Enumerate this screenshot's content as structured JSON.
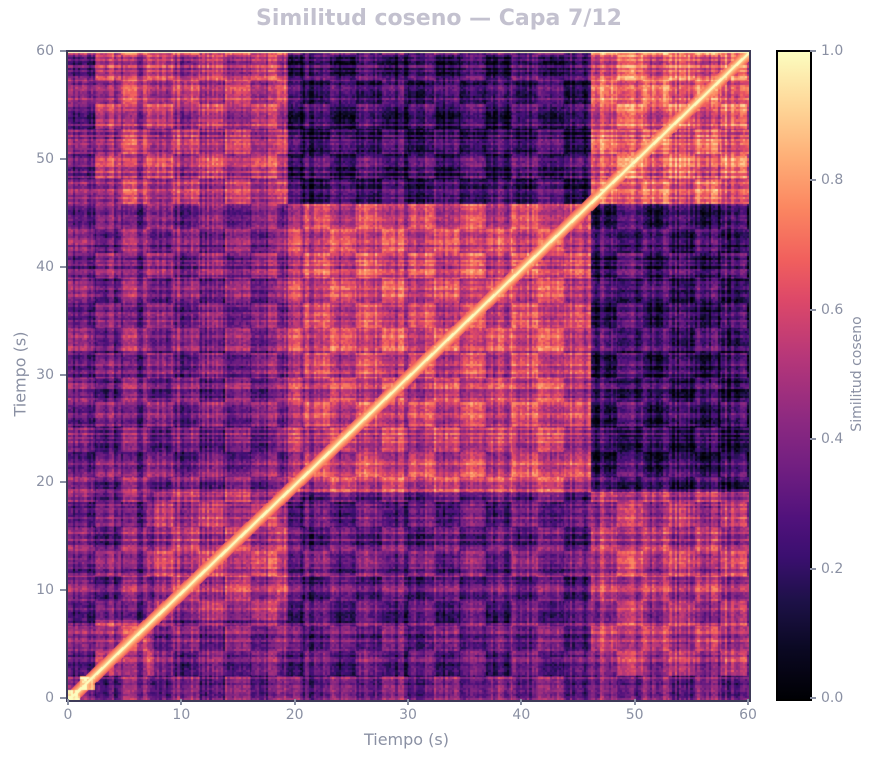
{
  "chart_data": {
    "type": "heatmap",
    "title": "Similitud coseno — Capa 7/12",
    "xlabel": "Tiempo (s)",
    "ylabel": "Tiempo (s)",
    "xlim": [
      0,
      60
    ],
    "ylim": [
      0,
      60
    ],
    "x_ticks": [
      "0",
      "10",
      "20",
      "30",
      "40",
      "50",
      "60"
    ],
    "y_ticks": [
      "0",
      "10",
      "20",
      "30",
      "40",
      "50",
      "60"
    ],
    "colormap": "magma",
    "colorbar": {
      "label": "Similitud coseno",
      "range": [
        0.0,
        1.0
      ],
      "ticks": [
        "0.0",
        "0.2",
        "0.4",
        "0.6",
        "0.8",
        "1.0"
      ]
    },
    "diagonal_value": 1.0,
    "segment_boundaries_s": [
      0,
      1.0,
      2.3,
      7.5,
      19.3,
      46.0,
      60.0
    ],
    "segments": [
      {
        "start": 0.0,
        "end": 1.0,
        "self_similarity": 0.85
      },
      {
        "start": 1.0,
        "end": 2.3,
        "self_similarity": 0.8
      },
      {
        "start": 2.3,
        "end": 7.5,
        "self_similarity": 0.45
      },
      {
        "start": 7.5,
        "end": 19.3,
        "self_similarity": 0.45
      },
      {
        "start": 19.3,
        "end": 46.0,
        "self_similarity": 0.5
      },
      {
        "start": 46.0,
        "end": 60.0,
        "self_similarity": 0.6
      }
    ],
    "cross_block_similarity": [
      {
        "rows": [
          46.0,
          60.0
        ],
        "cols": [
          2.3,
          19.3
        ],
        "mean": 0.45
      },
      {
        "rows": [
          46.0,
          60.0
        ],
        "cols": [
          19.3,
          46.0
        ],
        "mean": 0.15
      },
      {
        "rows": [
          19.3,
          46.0
        ],
        "cols": [
          46.0,
          60.0
        ],
        "mean": 0.15
      },
      {
        "rows": [
          2.3,
          19.3
        ],
        "cols": [
          46.0,
          60.0
        ],
        "mean": 0.45
      },
      {
        "rows": [
          2.3,
          19.3
        ],
        "cols": [
          19.3,
          46.0
        ],
        "mean": 0.25
      },
      {
        "rows": [
          19.3,
          46.0
        ],
        "cols": [
          2.3,
          19.3
        ],
        "mean": 0.3
      }
    ],
    "grid": false
  }
}
